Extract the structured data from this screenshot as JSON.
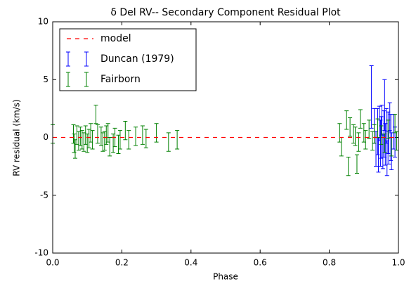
{
  "chart_data": {
    "type": "errorbar",
    "title": "δ Del RV-- Secondary Component Residual Plot",
    "xlabel": "Phase",
    "ylabel": "RV residual (km/s)",
    "xlim": [
      0,
      1
    ],
    "ylim": [
      -10,
      10
    ],
    "xticks": [
      {
        "value": 0,
        "label": "0.0"
      },
      {
        "value": 0.2,
        "label": "0.2"
      },
      {
        "value": 0.4,
        "label": "0.4"
      },
      {
        "value": 0.6,
        "label": "0.6"
      },
      {
        "value": 0.8,
        "label": "0.8"
      },
      {
        "value": 1,
        "label": "1.0"
      }
    ],
    "yticks": [
      -10,
      -5,
      0,
      5,
      10
    ],
    "legend": "upper left",
    "series": [
      {
        "name": "model",
        "color": "#ff0000",
        "style": "dashed",
        "x": [
          0,
          1
        ],
        "values": [
          0,
          0
        ]
      },
      {
        "name": "Duncan (1979)",
        "color": "#0000ff",
        "x": [
          0.922,
          0.93,
          0.935,
          0.94,
          0.942,
          0.945,
          0.948,
          0.95,
          0.952,
          0.955,
          0.958,
          0.96,
          0.962,
          0.965,
          0.967,
          0.97,
          0.972,
          0.975,
          0.978,
          0.98,
          0.985,
          0.99
        ],
        "values": [
          3.5,
          1.0,
          -1.0,
          0.5,
          -1.5,
          1.2,
          -0.5,
          0.0,
          1.5,
          -1.2,
          0.3,
          2.8,
          -0.6,
          1.0,
          -1.8,
          0.4,
          -0.9,
          1.8,
          0.0,
          -1.2,
          0.5,
          -0.4
        ],
        "errors": [
          2.7,
          1.5,
          1.5,
          2.0,
          1.5,
          1.5,
          2.0,
          1.8,
          1.3,
          1.5,
          2.0,
          2.2,
          1.8,
          1.5,
          1.5,
          1.8,
          1.4,
          1.2,
          2.0,
          1.6,
          1.5,
          1.3
        ]
      },
      {
        "name": "Fairborn",
        "color": "#008000",
        "x": [
          0.0,
          0.06,
          0.062,
          0.065,
          0.07,
          0.075,
          0.08,
          0.085,
          0.09,
          0.095,
          0.1,
          0.105,
          0.11,
          0.115,
          0.125,
          0.13,
          0.14,
          0.145,
          0.15,
          0.155,
          0.16,
          0.165,
          0.175,
          0.18,
          0.19,
          0.195,
          0.21,
          0.22,
          0.24,
          0.26,
          0.27,
          0.3,
          0.335,
          0.36,
          0.83,
          0.835,
          0.85,
          0.855,
          0.86,
          0.87,
          0.875,
          0.88,
          0.885,
          0.89,
          0.9,
          0.905,
          0.915,
          0.925,
          0.93,
          0.94,
          0.95,
          0.96,
          0.97,
          0.98,
          0.99,
          0.995
        ],
        "values": [
          0.3,
          0.3,
          -0.5,
          -1.0,
          0.2,
          -0.3,
          0.1,
          -0.2,
          -0.4,
          0.2,
          -0.5,
          -0.1,
          0.4,
          -0.2,
          2.0,
          0.3,
          0.1,
          -0.4,
          -0.3,
          0.2,
          0.4,
          -0.8,
          -0.5,
          0.0,
          -0.6,
          -0.2,
          0.6,
          -0.2,
          0.1,
          0.2,
          -0.1,
          0.4,
          -0.4,
          -0.2,
          0.4,
          -0.8,
          1.5,
          -2.5,
          0.9,
          0.3,
          0.1,
          -2.3,
          -0.4,
          1.6,
          0.4,
          -0.2,
          0.7,
          -0.3,
          0.3,
          0.8,
          0.2,
          -0.5,
          0.7,
          -0.8,
          1.2,
          -0.3
        ],
        "errors": [
          0.8,
          0.8,
          0.8,
          0.8,
          0.8,
          0.8,
          0.8,
          0.8,
          0.8,
          0.8,
          0.8,
          0.8,
          0.8,
          0.8,
          0.8,
          0.8,
          0.8,
          0.8,
          0.8,
          0.8,
          0.8,
          0.8,
          0.8,
          0.8,
          0.8,
          0.8,
          0.8,
          0.8,
          0.8,
          0.8,
          0.8,
          0.8,
          0.8,
          0.8,
          0.8,
          0.8,
          0.8,
          0.8,
          0.8,
          0.8,
          0.8,
          0.8,
          0.8,
          0.8,
          0.8,
          0.8,
          0.8,
          0.8,
          0.8,
          0.8,
          0.8,
          0.8,
          0.8,
          0.8,
          0.8,
          0.8
        ]
      }
    ]
  }
}
